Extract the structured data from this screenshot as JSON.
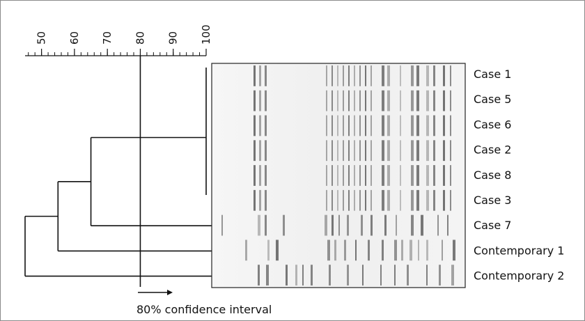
{
  "scale": {
    "min": 45,
    "max": 100,
    "labeled_ticks": [
      "50",
      "60",
      "70",
      "80",
      "90",
      "100"
    ],
    "minor_step": 2
  },
  "cutoff_value": 80,
  "lanes": [
    "Case 1",
    "Case 5",
    "Case 6",
    "Case 2",
    "Case 8",
    "Case 3",
    "Case 7",
    "Contemporary 1",
    "Contemporary 2"
  ],
  "clusters": [
    {
      "members": [
        0,
        1,
        2,
        3,
        4,
        5
      ],
      "similarity": 100
    },
    {
      "members": [
        0,
        1,
        2,
        3,
        4,
        5,
        6
      ],
      "similarity": 65
    },
    {
      "members": [
        0,
        1,
        2,
        3,
        4,
        5,
        6,
        7
      ],
      "similarity": 55
    },
    {
      "members": [
        0,
        1,
        2,
        3,
        4,
        5,
        6,
        7,
        8
      ],
      "similarity": 45
    }
  ],
  "annotation": "80% confidence interval",
  "colors": {
    "line": "#111111",
    "gel_background": "#f2f2f2",
    "band": "#5a5a5a",
    "frame": "#8a8a8a"
  }
}
